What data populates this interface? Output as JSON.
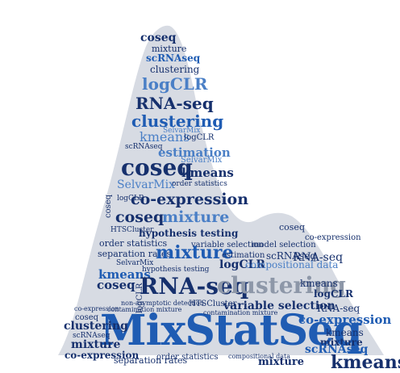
{
  "palette": {
    "navy": "#16306d",
    "blue": "#1f5cb3",
    "sky": "#4a7fc6",
    "gray": "#666c78",
    "light": "#8d97a8",
    "shape": "#d7dbe3"
  },
  "title": "MixStatSeq",
  "terms": {
    "coseq": "coseq",
    "mixture": "mixture",
    "scrnaseq": "scRNAseq",
    "clustering": "clustering",
    "logclr": "logCLR",
    "rnaseq": "RNA-seq",
    "kmeans": "kmeans",
    "estimation": "estimation",
    "selvarmix": "SelvarMix",
    "selvarmix2": "SelvarMix",
    "coexpression": "co-expression",
    "hypothesis": "hypothesis testing",
    "htsc": "HTSCluster",
    "order": "order statistics",
    "varsel": "variable selection",
    "modelsel": "model selection",
    "separation": "separation rates",
    "compositional": "compositional data",
    "nonasym": "non-asymptotic detection",
    "contamination": "contamination mixture"
  }
}
